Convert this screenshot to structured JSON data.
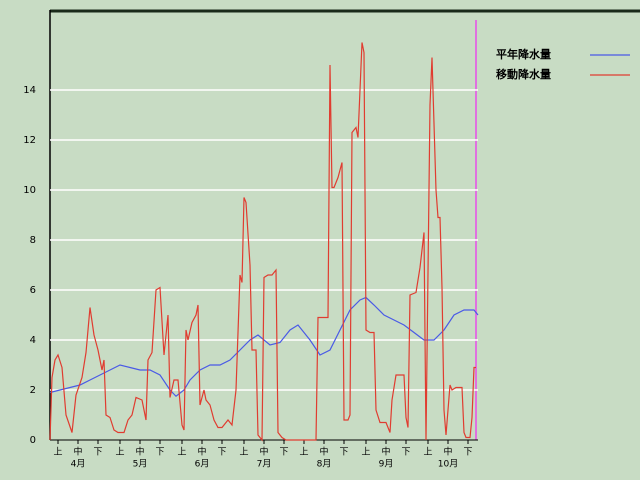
{
  "chart_data": {
    "type": "line",
    "legend": [
      "平年降水量",
      "移動降水量"
    ],
    "xlim": [
      0,
      214
    ],
    "ylim": [
      0,
      17.2
    ],
    "yticks": [
      0,
      2,
      4,
      6,
      8,
      10,
      12,
      14
    ],
    "grid": true,
    "legend_position": "upper right",
    "xticks": [
      {
        "value": 4,
        "label": "上"
      },
      {
        "value": 14,
        "label": "中"
      },
      {
        "value": 24,
        "label": "下"
      },
      {
        "value": 35,
        "label": "上"
      },
      {
        "value": 45,
        "label": "中"
      },
      {
        "value": 55,
        "label": "下"
      },
      {
        "value": 66,
        "label": "上"
      },
      {
        "value": 76,
        "label": "中"
      },
      {
        "value": 86,
        "label": "下"
      },
      {
        "value": 97,
        "label": "上"
      },
      {
        "value": 107,
        "label": "中"
      },
      {
        "value": 117,
        "label": "下"
      },
      {
        "value": 127,
        "label": "上"
      },
      {
        "value": 137,
        "label": "中"
      },
      {
        "value": 147,
        "label": "下"
      },
      {
        "value": 158,
        "label": "上"
      },
      {
        "value": 168,
        "label": "中"
      },
      {
        "value": 178,
        "label": "下"
      },
      {
        "value": 189,
        "label": "上"
      },
      {
        "value": 199,
        "label": "中"
      },
      {
        "value": 209,
        "label": "下"
      }
    ],
    "month_labels": [
      {
        "value": 14,
        "label": "4月"
      },
      {
        "value": 45,
        "label": "5月"
      },
      {
        "value": 76,
        "label": "6月"
      },
      {
        "value": 107,
        "label": "7月"
      },
      {
        "value": 137,
        "label": "8月"
      },
      {
        "value": 168,
        "label": "9月"
      },
      {
        "value": 199,
        "label": "10月"
      }
    ],
    "series": [
      {
        "name": "平年降水量",
        "color": "#4a5ae6",
        "x": [
          0,
          5,
          10,
          15,
          20,
          25,
          30,
          35,
          40,
          45,
          50,
          55,
          60,
          63,
          67,
          70,
          75,
          80,
          85,
          90,
          95,
          100,
          104,
          110,
          115,
          120,
          124,
          130,
          135,
          140,
          145,
          150,
          155,
          158,
          162,
          167,
          172,
          177,
          182,
          187,
          192,
          197,
          202,
          207,
          212,
          214
        ],
        "values": [
          1.9,
          2.0,
          2.1,
          2.2,
          2.4,
          2.6,
          2.8,
          3.0,
          2.9,
          2.8,
          2.8,
          2.6,
          2.0,
          1.75,
          2.0,
          2.4,
          2.8,
          3.0,
          3.0,
          3.2,
          3.6,
          4.0,
          4.2,
          3.8,
          3.9,
          4.4,
          4.6,
          4.0,
          3.4,
          3.6,
          4.4,
          5.2,
          5.6,
          5.7,
          5.4,
          5.0,
          4.8,
          4.6,
          4.3,
          4.0,
          4.0,
          4.4,
          5.0,
          5.2,
          5.2,
          5.0
        ]
      },
      {
        "name": "移動降水量",
        "color": "#e03c30",
        "x": [
          0,
          1,
          2.5,
          4,
          6,
          8,
          11,
          13,
          16,
          18,
          20,
          22,
          24,
          26,
          27,
          28,
          30,
          32,
          34,
          37,
          39,
          41,
          43,
          46,
          48,
          49,
          51,
          53,
          55,
          57,
          59,
          60,
          62,
          64,
          66,
          67,
          68,
          69,
          71,
          73,
          74,
          75,
          77,
          78,
          80,
          82,
          84,
          86,
          89,
          91,
          93,
          95,
          96,
          97,
          98,
          100,
          101,
          103,
          104,
          106,
          107,
          109,
          111,
          113,
          114,
          116,
          118,
          125,
          133,
          134,
          139,
          140,
          141,
          142,
          144,
          146,
          147,
          149,
          150,
          151,
          153,
          154,
          156,
          157,
          158,
          160,
          162,
          163,
          165,
          168,
          170,
          171,
          173,
          177,
          178,
          179,
          180,
          183,
          185,
          187,
          188,
          190,
          191,
          193,
          194,
          195,
          196,
          197,
          198,
          200,
          201,
          203,
          206,
          207,
          208,
          210,
          211,
          212,
          213
        ],
        "values": [
          0,
          2.5,
          3.2,
          3.4,
          2.9,
          1.0,
          0.3,
          1.8,
          2.5,
          3.5,
          5.3,
          4.2,
          3.6,
          2.8,
          3.2,
          1.0,
          0.9,
          0.4,
          0.3,
          0.3,
          0.8,
          1.0,
          1.7,
          1.6,
          0.8,
          3.2,
          3.5,
          6.0,
          6.1,
          3.4,
          5.0,
          1.7,
          2.4,
          2.4,
          0.6,
          0.4,
          4.4,
          4.0,
          4.7,
          5.0,
          5.4,
          1.4,
          2.0,
          1.6,
          1.4,
          0.8,
          0.5,
          0.5,
          0.8,
          0.6,
          2.0,
          6.6,
          6.3,
          9.7,
          9.5,
          7.0,
          3.6,
          3.6,
          0.2,
          0,
          6.5,
          6.6,
          6.6,
          6.8,
          0.3,
          0.1,
          0,
          0,
          0,
          4.9,
          4.9,
          15.0,
          10.1,
          10.1,
          10.5,
          11.1,
          0.8,
          0.8,
          1.0,
          12.3,
          12.5,
          12.1,
          15.9,
          15.5,
          4.4,
          4.3,
          4.3,
          1.2,
          0.7,
          0.7,
          0.3,
          1.6,
          2.6,
          2.6,
          0.9,
          0.5,
          5.8,
          5.9,
          6.9,
          8.3,
          0,
          13.4,
          15.3,
          10.0,
          8.9,
          8.9,
          6.1,
          1.2,
          0.2,
          2.2,
          2.0,
          2.1,
          2.1,
          0.3,
          0.1,
          0.1,
          0.9,
          2.9,
          2.9
        ]
      }
    ]
  }
}
